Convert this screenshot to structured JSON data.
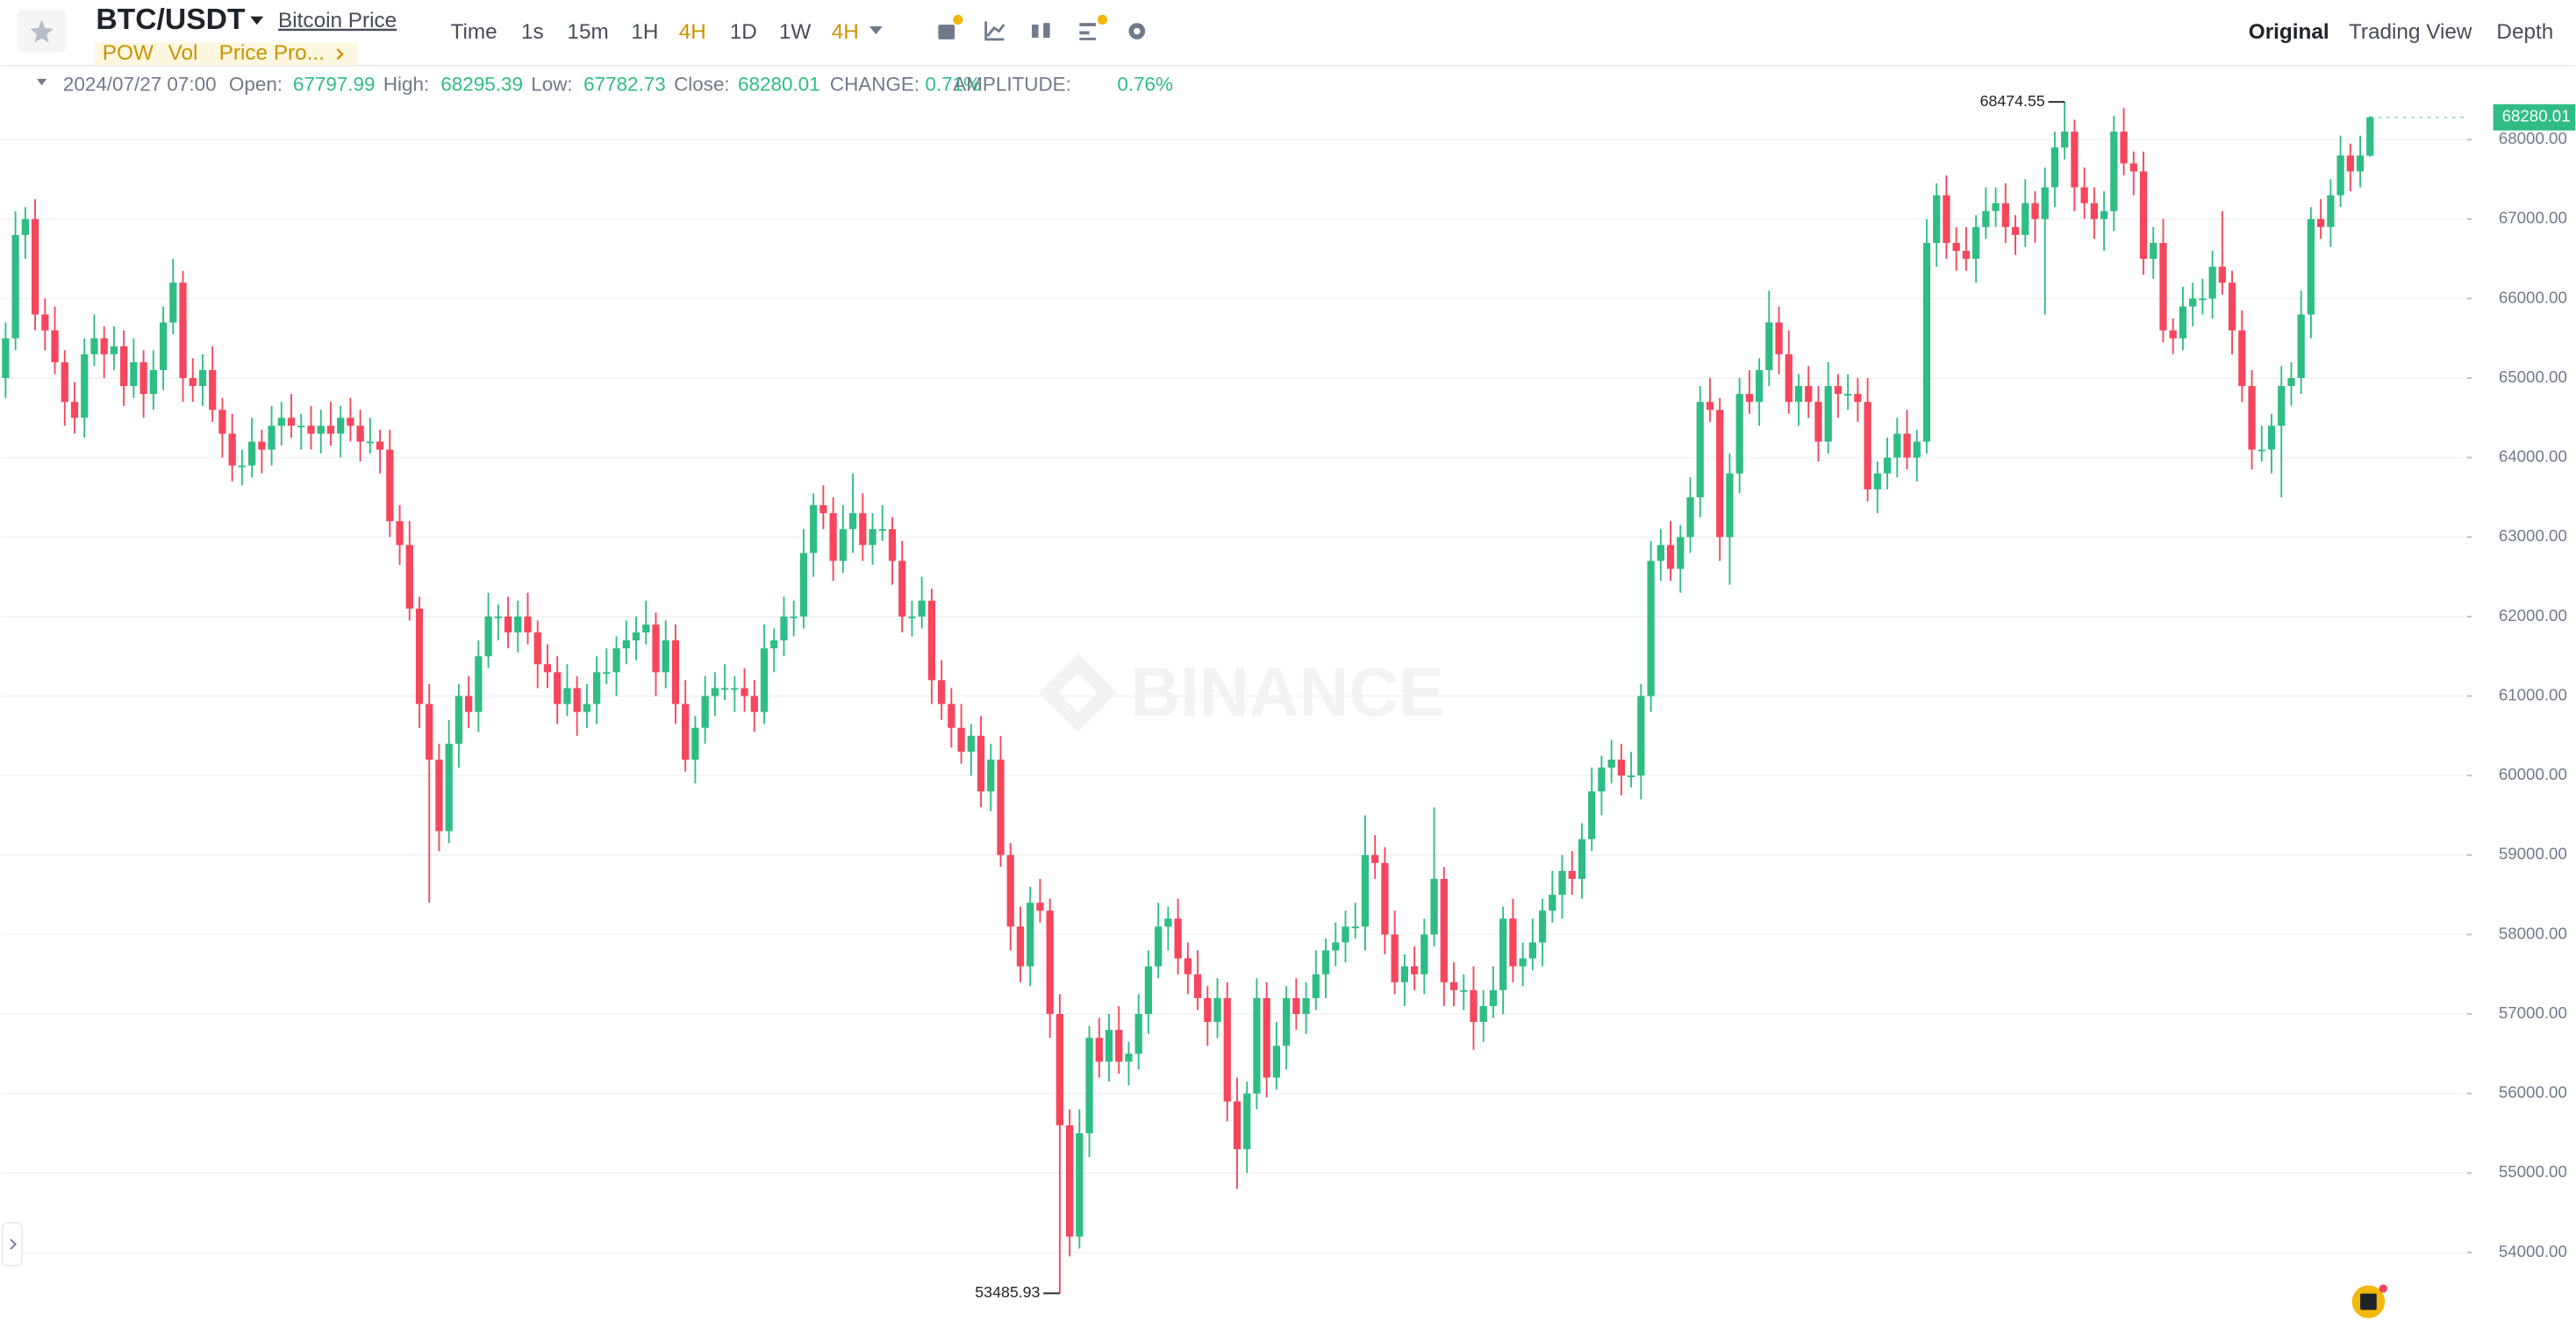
{
  "header": {
    "symbol": "BTC/USDT",
    "name": "Bitcoin Price",
    "tags": [
      "POW",
      "Vol",
      "Price Pro..."
    ],
    "intervals": [
      "Time",
      "1s",
      "15m",
      "1H",
      "4H",
      "1D",
      "1W",
      "4H"
    ],
    "views": [
      "Original",
      "Trading View",
      "Depth"
    ]
  },
  "info": {
    "datetime": "2024/07/27 07:00",
    "open_label": "Open:",
    "high_label": "High:",
    "low_label": "Low:",
    "close_label": "Close:",
    "change_label": "CHANGE:",
    "change": "0.71%",
    "amplitude_label": "AMPLITUDE:",
    "amplitude": "0.76%"
  },
  "watermark": "BINANCE",
  "chart_data": {
    "type": "candlestick",
    "up_color": "#2ebd85",
    "down_color": "#f6465d",
    "grid": true,
    "ylim": [
      53050,
      68930
    ],
    "yticks": [
      {
        "value": 54000,
        "label": "54000.00"
      },
      {
        "value": 55000,
        "label": "55000.00"
      },
      {
        "value": 56000,
        "label": "56000.00"
      },
      {
        "value": 57000,
        "label": "57000.00"
      },
      {
        "value": 58000,
        "label": "58000.00"
      },
      {
        "value": 59000,
        "label": "59000.00"
      },
      {
        "value": 60000,
        "label": "60000.00"
      },
      {
        "value": 61000,
        "label": "61000.00"
      },
      {
        "value": 62000,
        "label": "62000.00"
      },
      {
        "value": 63000,
        "label": "63000.00"
      },
      {
        "value": 64000,
        "label": "64000.00"
      },
      {
        "value": 65000,
        "label": "65000.00"
      },
      {
        "value": 66000,
        "label": "66000.00"
      },
      {
        "value": 67000,
        "label": "67000.00"
      },
      {
        "value": 68000,
        "label": "68000.00"
      }
    ],
    "open": [
      65000,
      65500,
      66800,
      67000,
      65800,
      65600,
      65200,
      64700,
      64500,
      65300,
      65500,
      65300,
      65400,
      64900,
      65200,
      64800,
      65100,
      65700,
      66200,
      65000,
      64900,
      65100,
      64600,
      64300,
      63900,
      63900,
      64200,
      64100,
      64400,
      64500,
      64400,
      64400,
      64300,
      64400,
      64300,
      64500,
      64400,
      64200,
      64200,
      64100,
      63200,
      62900,
      62100,
      60900,
      60200,
      59300,
      60400,
      61000,
      60800,
      61500,
      62000,
      62000,
      61800,
      62000,
      61800,
      61400,
      61300,
      60900,
      61100,
      60800,
      60900,
      61300,
      61300,
      61600,
      61700,
      61800,
      61900,
      61300,
      61700,
      60900,
      60200,
      60600,
      61000,
      61100,
      61100,
      61100,
      61000,
      60800,
      61600,
      61700,
      62000,
      62000,
      62800,
      63400,
      63300,
      62700,
      63100,
      63300,
      62900,
      63100,
      63100,
      62700,
      62000,
      62000,
      62200,
      61200,
      60900,
      60600,
      60300,
      60500,
      59800,
      60200,
      59000,
      58100,
      57600,
      58400,
      58300,
      57000,
      55600,
      54200,
      55500,
      56700,
      56400,
      56800,
      56400,
      56500,
      57000,
      57600,
      58100,
      58200,
      57700,
      57500,
      57200,
      56900,
      57200,
      55900,
      55300,
      56000,
      57200,
      56200,
      56600,
      57200,
      57000,
      57200,
      57500,
      57800,
      57900,
      58100,
      58100,
      59000,
      58900,
      58000,
      57400,
      57600,
      57500,
      58000,
      58700,
      57400,
      57300,
      57300,
      56900,
      57100,
      57300,
      58200,
      57600,
      57700,
      57900,
      58300,
      58500,
      58800,
      58700,
      59200,
      59800,
      60100,
      60200,
      60000,
      60000,
      61000,
      62700,
      62900,
      62600,
      63000,
      63500,
      64700,
      64600,
      63000,
      63800,
      64800,
      64700,
      65100,
      65700,
      65300,
      64700,
      64900,
      64700,
      64200,
      64900,
      64800,
      64800,
      64700,
      63600,
      63800,
      64000,
      64300,
      64000,
      64200,
      66700,
      67300,
      66700,
      66600,
      66500,
      66900,
      67100,
      67200,
      66900,
      66800,
      67200,
      67000,
      67400,
      67900,
      68100,
      67400,
      67200,
      67000,
      67100,
      68100,
      67700,
      67600,
      66500,
      66700,
      65600,
      65500,
      65900,
      66000,
      66000,
      66400,
      66200,
      65600,
      64900,
      64100,
      64100,
      64400,
      64900,
      65000,
      65800,
      67000,
      66900,
      67300,
      67800,
      67600,
      67797.99
    ],
    "high": [
      65700,
      67100,
      67150,
      67250,
      66000,
      65900,
      65350,
      64950,
      65500,
      65800,
      65650,
      65650,
      65600,
      65500,
      65350,
      65350,
      65900,
      66500,
      66350,
      65250,
      65300,
      65400,
      64750,
      64550,
      64100,
      64500,
      64350,
      64650,
      64700,
      64800,
      64550,
      64650,
      64600,
      64700,
      64650,
      64750,
      64600,
      64500,
      64350,
      64350,
      63400,
      63200,
      62250,
      61150,
      60400,
      60700,
      61150,
      61250,
      61700,
      62300,
      62150,
      62250,
      62200,
      62300,
      61950,
      61650,
      61500,
      61400,
      61250,
      61150,
      61500,
      61600,
      61750,
      61950,
      62000,
      62200,
      62050,
      61950,
      61900,
      61200,
      60750,
      61250,
      61300,
      61400,
      61250,
      61350,
      61200,
      61900,
      61850,
      62250,
      62200,
      63100,
      63550,
      63650,
      63500,
      63400,
      63800,
      63550,
      63300,
      63400,
      63250,
      62950,
      62200,
      62500,
      62350,
      61450,
      61100,
      60900,
      60650,
      60750,
      60400,
      60500,
      59150,
      58350,
      58600,
      58700,
      58450,
      57250,
      55800,
      55800,
      56850,
      56950,
      57000,
      57100,
      56650,
      57250,
      57800,
      58400,
      58350,
      58450,
      57900,
      57800,
      57350,
      57450,
      57400,
      56200,
      56150,
      57450,
      57400,
      56900,
      57350,
      57450,
      57400,
      57800,
      57950,
      58150,
      58300,
      58400,
      59500,
      59250,
      59100,
      58300,
      57750,
      57850,
      58200,
      59600,
      58850,
      57650,
      57500,
      57600,
      57300,
      57600,
      58350,
      58450,
      57900,
      58200,
      58450,
      58800,
      59000,
      59050,
      59400,
      60100,
      60250,
      60450,
      60400,
      60300,
      61150,
      62950,
      63100,
      63200,
      63150,
      63750,
      64900,
      65000,
      64750,
      64050,
      65000,
      65100,
      65250,
      66100,
      65900,
      65600,
      65050,
      65150,
      64900,
      65200,
      65050,
      65050,
      65000,
      65000,
      63950,
      64250,
      64500,
      64600,
      64350,
      67000,
      67450,
      67550,
      66900,
      66900,
      67050,
      67400,
      67400,
      67450,
      67050,
      67500,
      67350,
      67650,
      68100,
      68474.55,
      68250,
      67650,
      67400,
      67350,
      68300,
      68400,
      67850,
      67850,
      66900,
      67000,
      65750,
      66150,
      66200,
      66250,
      66600,
      67100,
      66350,
      65850,
      65100,
      64400,
      64550,
      65150,
      65200,
      66100,
      67150,
      67250,
      67500,
      68050,
      67950,
      68050,
      68295.39
    ],
    "low": [
      64750,
      65350,
      66500,
      65600,
      65350,
      65050,
      64400,
      64300,
      64250,
      65150,
      65000,
      65100,
      64650,
      64750,
      64500,
      64600,
      64850,
      65550,
      64700,
      64700,
      64650,
      64450,
      64000,
      63700,
      63650,
      63750,
      63800,
      63900,
      64150,
      64250,
      64100,
      64100,
      64050,
      64150,
      64000,
      64200,
      63950,
      64050,
      63800,
      63000,
      62650,
      61950,
      60600,
      58400,
      59050,
      59150,
      60100,
      60600,
      60550,
      61350,
      61700,
      61600,
      61550,
      61650,
      61100,
      61100,
      60650,
      60750,
      60500,
      60600,
      60650,
      61150,
      61000,
      61400,
      61450,
      61650,
      61000,
      61100,
      60650,
      60050,
      59900,
      60400,
      60750,
      60950,
      60800,
      60800,
      60550,
      60650,
      61300,
      61500,
      61750,
      61850,
      62500,
      63100,
      62450,
      62550,
      62800,
      62700,
      62650,
      62950,
      62400,
      61800,
      61750,
      61850,
      60900,
      60700,
      60350,
      60150,
      60000,
      59600,
      59550,
      58850,
      57800,
      57400,
      57350,
      58150,
      56700,
      53485.93,
      53950,
      54050,
      55200,
      56200,
      56150,
      56250,
      56100,
      56300,
      56750,
      57450,
      57800,
      57500,
      57250,
      57050,
      56600,
      56700,
      55650,
      54800,
      55000,
      55800,
      55950,
      56050,
      56300,
      56800,
      56750,
      57050,
      57200,
      57600,
      57650,
      57950,
      57800,
      58700,
      57750,
      57250,
      57100,
      57300,
      57250,
      57850,
      57100,
      57100,
      57050,
      56550,
      56650,
      56950,
      57000,
      57400,
      57350,
      57550,
      57600,
      58150,
      58200,
      58500,
      58450,
      59050,
      59500,
      59900,
      59750,
      59850,
      59700,
      60800,
      62450,
      62450,
      62300,
      62800,
      63250,
      64450,
      62700,
      62400,
      63550,
      64550,
      64400,
      64900,
      65050,
      64550,
      64400,
      64500,
      63950,
      64050,
      64500,
      64600,
      64450,
      63450,
      63300,
      63600,
      63750,
      63850,
      63700,
      64050,
      66400,
      66500,
      66350,
      66350,
      66200,
      66750,
      66900,
      66700,
      66550,
      66650,
      66700,
      65800,
      67150,
      67750,
      67100,
      67000,
      66750,
      66600,
      66850,
      67550,
      67300,
      66300,
      66250,
      65450,
      65300,
      65350,
      65650,
      65800,
      65750,
      66050,
      65300,
      64700,
      63850,
      63950,
      63800,
      63500,
      64650,
      64800,
      65500,
      66750,
      66650,
      67150,
      67350,
      67400,
      67782.73
    ],
    "close": [
      65500,
      66800,
      67000,
      65800,
      65600,
      65200,
      64700,
      64500,
      65300,
      65500,
      65300,
      65400,
      64900,
      65200,
      64800,
      65100,
      65700,
      66200,
      65000,
      64900,
      65100,
      64600,
      64300,
      63900,
      63900,
      64200,
      64100,
      64400,
      64500,
      64400,
      64400,
      64300,
      64400,
      64300,
      64500,
      64400,
      64200,
      64200,
      64100,
      63200,
      62900,
      62100,
      60900,
      60200,
      59300,
      60400,
      61000,
      60800,
      61500,
      62000,
      62000,
      61800,
      62000,
      61800,
      61400,
      61300,
      60900,
      61100,
      60800,
      60900,
      61300,
      61300,
      61600,
      61700,
      61800,
      61900,
      61300,
      61700,
      60900,
      60200,
      60600,
      61000,
      61100,
      61100,
      61100,
      61000,
      60800,
      61600,
      61700,
      62000,
      62000,
      62800,
      63400,
      63300,
      62700,
      63100,
      63300,
      62900,
      63100,
      63100,
      62700,
      62000,
      62000,
      62200,
      61200,
      60900,
      60600,
      60300,
      60500,
      59800,
      60200,
      59000,
      58100,
      57600,
      58400,
      58300,
      57000,
      55600,
      54200,
      55500,
      56700,
      56400,
      56800,
      56400,
      56500,
      57000,
      57600,
      58100,
      58200,
      57700,
      57500,
      57200,
      56900,
      57200,
      55900,
      55300,
      56000,
      57200,
      56200,
      56600,
      57200,
      57000,
      57200,
      57500,
      57800,
      57900,
      58100,
      58100,
      59000,
      58900,
      58000,
      57400,
      57600,
      57500,
      58000,
      58700,
      57400,
      57300,
      57300,
      56900,
      57100,
      57300,
      58200,
      57600,
      57700,
      57900,
      58300,
      58500,
      58800,
      58700,
      59200,
      59800,
      60100,
      60200,
      60000,
      60000,
      61000,
      62700,
      62900,
      62600,
      63000,
      63500,
      64700,
      64600,
      63000,
      63800,
      64800,
      64700,
      65100,
      65700,
      65300,
      64700,
      64900,
      64700,
      64200,
      64900,
      64800,
      64800,
      64700,
      63600,
      63800,
      64000,
      64300,
      64000,
      64200,
      66700,
      67300,
      66700,
      66600,
      66500,
      66900,
      67100,
      67200,
      66900,
      66800,
      67200,
      67000,
      67400,
      67900,
      68100,
      67400,
      67200,
      67000,
      67100,
      68100,
      67700,
      67600,
      66500,
      66700,
      65600,
      65500,
      65900,
      66000,
      66000,
      66400,
      66200,
      65600,
      64900,
      64100,
      64100,
      64400,
      64900,
      65000,
      65800,
      67000,
      66900,
      67300,
      67800,
      67600,
      67800,
      68280.01
    ]
  }
}
